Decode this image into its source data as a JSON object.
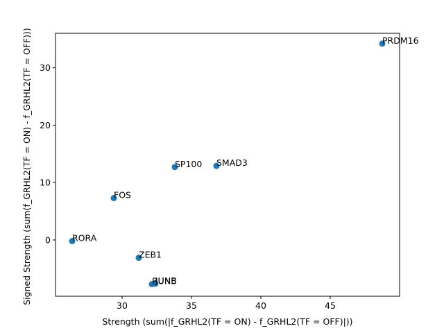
{
  "chart_data": {
    "type": "scatter",
    "title": "",
    "xlabel": "Strength (sum(|f_GRHL2(TF = ON) - f_GRHL2(TF = OFF)|))",
    "ylabel": "Signed Strength (sum(f_GRHL2(TF = ON) - f_GRHL2(TF = OFF)))",
    "xlim": [
      25.2,
      50.0
    ],
    "ylim": [
      -9.8,
      36.0
    ],
    "xticks": [
      30,
      35,
      40,
      45
    ],
    "yticks": [
      0,
      10,
      20,
      30
    ],
    "grid": false,
    "marker_color": "#1f77b4",
    "points": [
      {
        "label": "PRDM16",
        "x": 48.75,
        "y": 34.2
      },
      {
        "label": "SMAD3",
        "x": 36.8,
        "y": 12.9
      },
      {
        "label": "SP100",
        "x": 33.8,
        "y": 12.7
      },
      {
        "label": "FOS",
        "x": 29.4,
        "y": 7.3
      },
      {
        "label": "RORA",
        "x": 26.4,
        "y": -0.2
      },
      {
        "label": "ZEB1",
        "x": 31.2,
        "y": -3.1
      },
      {
        "label": "JUNB",
        "x": 32.4,
        "y": -7.6
      },
      {
        "label": "RUNB",
        "x": 32.15,
        "y": -7.7
      }
    ]
  }
}
